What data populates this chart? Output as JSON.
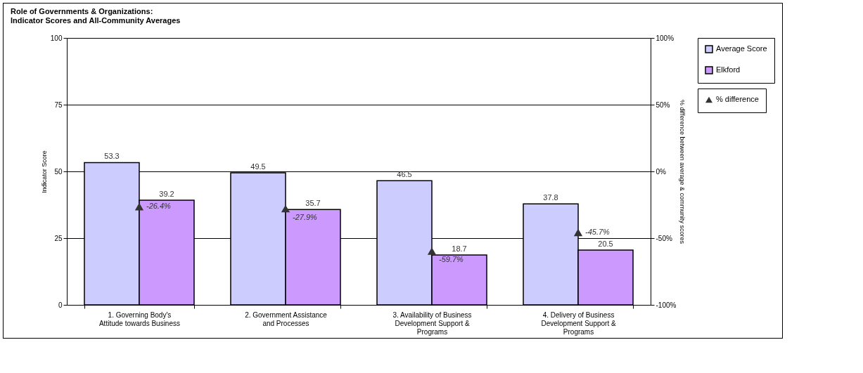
{
  "chart_data": {
    "type": "bar",
    "title": "Role of Governments & Organizations:\nIndicator Scores and All-Community Averages",
    "ylabel": "Indicator Score",
    "y2label": "% difference between average & community scores",
    "categories": [
      "1. Governing Body's Attitude towards Business",
      "2. Government Assistance and Processes",
      "3. Availability of Business Development Support & Programs",
      "4. Delivery of Business Development Support & Programs"
    ],
    "series": [
      {
        "name": "Average Score",
        "color": "#ccccff",
        "values": [
          53.3,
          49.5,
          46.5,
          37.8
        ]
      },
      {
        "name": "Elkford",
        "color": "#cc99ff",
        "values": [
          39.2,
          35.7,
          18.7,
          20.5
        ]
      },
      {
        "name": "% difference",
        "type": "scatter",
        "axis": "y2",
        "marker": "triangle",
        "color": "#333333",
        "values": [
          -26.4,
          -27.9,
          -59.7,
          -45.7
        ],
        "value_labels": [
          "-26.4%",
          "-27.9%",
          "-59.7%",
          "-45.7%"
        ]
      }
    ],
    "data_labels": true,
    "ylim": [
      0,
      100
    ],
    "yticks": [
      0,
      25,
      50,
      75,
      100
    ],
    "y2lim": [
      -100,
      100
    ],
    "y2ticks": [
      {
        "value": -100,
        "label": "-100%"
      },
      {
        "value": -50,
        "label": "-50%"
      },
      {
        "value": 0,
        "label": "0%"
      },
      {
        "value": 50,
        "label": "50%"
      },
      {
        "value": 100,
        "label": "100%"
      }
    ],
    "grid": "y",
    "legend": "right"
  }
}
